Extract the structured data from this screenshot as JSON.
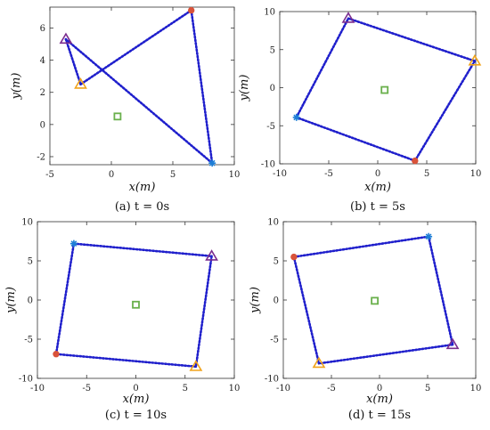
{
  "colors": {
    "edge": "#1f1fcc",
    "agent_red": "#d9533a",
    "agent_blue": "#1f7fd6",
    "agent_purple": "#7b2d8e",
    "agent_orange": "#f0a31c",
    "target_green": "#6ab04c"
  },
  "chart_data": [
    {
      "type": "scatter",
      "caption": "(a) t = 0s",
      "xlabel": "x(m)",
      "ylabel": "y(m)",
      "xlim": [
        -5,
        10
      ],
      "ylim": [
        -2.5,
        7.3
      ],
      "xticks": [
        -5,
        0,
        5,
        10
      ],
      "yticks": [
        -2,
        0,
        2,
        4,
        6
      ],
      "target": {
        "x": 0.5,
        "y": 0.5
      },
      "agents": [
        {
          "marker": "circle",
          "color": "agent_red",
          "x": 6.5,
          "y": 7.1
        },
        {
          "marker": "star",
          "color": "agent_blue",
          "x": 8.2,
          "y": -2.4
        },
        {
          "marker": "triangle",
          "color": "agent_purple",
          "x": -3.7,
          "y": 5.3
        },
        {
          "marker": "triangle",
          "color": "agent_orange",
          "x": -2.5,
          "y": 2.5
        }
      ]
    },
    {
      "type": "scatter",
      "caption": "(b) t = 5s",
      "xlabel": "x(m)",
      "ylabel": "y(m)",
      "xlim": [
        -10,
        10
      ],
      "ylim": [
        -10,
        10
      ],
      "xticks": [
        -10,
        -5,
        0,
        5,
        10
      ],
      "yticks": [
        -10,
        -5,
        0,
        5,
        10
      ],
      "target": {
        "x": 0.7,
        "y": -0.3
      },
      "agents": [
        {
          "marker": "circle",
          "color": "agent_red",
          "x": 3.8,
          "y": -9.6
        },
        {
          "marker": "star",
          "color": "agent_blue",
          "x": -8.3,
          "y": -3.9
        },
        {
          "marker": "triangle",
          "color": "agent_purple",
          "x": -3.0,
          "y": 9.1
        },
        {
          "marker": "triangle",
          "color": "agent_orange",
          "x": 9.9,
          "y": 3.5
        }
      ]
    },
    {
      "type": "scatter",
      "caption": "(c) t = 10s",
      "xlabel": "x(m)",
      "ylabel": "y(m)",
      "xlim": [
        -10,
        10
      ],
      "ylim": [
        -10,
        10
      ],
      "xticks": [
        -10,
        -5,
        0,
        5,
        10
      ],
      "yticks": [
        -10,
        -5,
        0,
        5,
        10
      ],
      "target": {
        "x": 0.0,
        "y": -0.6
      },
      "agents": [
        {
          "marker": "circle",
          "color": "agent_red",
          "x": -8.1,
          "y": -6.9
        },
        {
          "marker": "star",
          "color": "agent_blue",
          "x": -6.3,
          "y": 7.2
        },
        {
          "marker": "triangle",
          "color": "agent_purple",
          "x": 7.7,
          "y": 5.6
        },
        {
          "marker": "triangle",
          "color": "agent_orange",
          "x": 6.1,
          "y": -8.5
        }
      ]
    },
    {
      "type": "scatter",
      "caption": "(d) t = 15s",
      "xlabel": "x(m)",
      "ylabel": "y(m)",
      "xlim": [
        -10,
        10
      ],
      "ylim": [
        -10,
        10
      ],
      "xticks": [
        -10,
        -5,
        0,
        5,
        10
      ],
      "yticks": [
        -10,
        -5,
        0,
        5,
        10
      ],
      "target": {
        "x": -0.5,
        "y": -0.1
      },
      "agents": [
        {
          "marker": "circle",
          "color": "agent_red",
          "x": -8.9,
          "y": 5.5
        },
        {
          "marker": "star",
          "color": "agent_blue",
          "x": 5.1,
          "y": 8.1
        },
        {
          "marker": "triangle",
          "color": "agent_purple",
          "x": 7.6,
          "y": -5.7
        },
        {
          "marker": "triangle",
          "color": "agent_orange",
          "x": -6.3,
          "y": -8.1
        }
      ]
    }
  ]
}
